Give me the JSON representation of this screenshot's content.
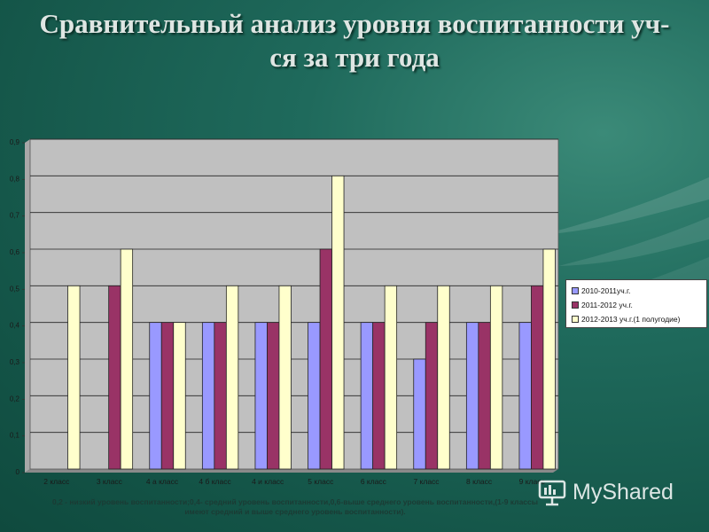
{
  "slide": {
    "title": "Сравнительный анализ уровня воспитанности уч-ся за три года",
    "note": "0,2 - низкий уровень воспитанности;0,4- средний уровень воспитанности,0,6-выше среднего уровень воспитанности,(1-9 классы имеют средний и выше среднего уровень воспитанности).",
    "watermark": "MyShared"
  },
  "colors": {
    "plot_bg": "#c0c0c0",
    "series": [
      "#9999ff",
      "#993366",
      "#ffffcc"
    ]
  },
  "chart_data": {
    "type": "bar",
    "title": "",
    "xlabel": "",
    "ylabel": "",
    "ylim": [
      0,
      0.9
    ],
    "yticks": [
      "0",
      "0,1",
      "0,2",
      "0,3",
      "0,4",
      "0,5",
      "0,6",
      "0,7",
      "0,8",
      "0,9"
    ],
    "grid": true,
    "legend_position": "right",
    "categories": [
      "2 класс",
      "3 класс",
      "4 а класс",
      "4 б класс",
      "4 и класс",
      "5 класс",
      "6 класс",
      "7 класс",
      "8 класс",
      "9 класс"
    ],
    "series": [
      {
        "name": "2010-2011уч.г.",
        "values": [
          0,
          0,
          0.4,
          0.4,
          0.4,
          0.4,
          0.4,
          0.3,
          0.4,
          0.4
        ]
      },
      {
        "name": "2011-2012 уч.г.",
        "values": [
          0,
          0.5,
          0.4,
          0.4,
          0.4,
          0.6,
          0.4,
          0.4,
          0.4,
          0.5
        ]
      },
      {
        "name": "2012-2013 уч.г.(1 полугодие)",
        "values": [
          0.5,
          0.6,
          0.4,
          0.5,
          0.5,
          0.8,
          0.5,
          0.5,
          0.5,
          0.6
        ]
      }
    ]
  }
}
